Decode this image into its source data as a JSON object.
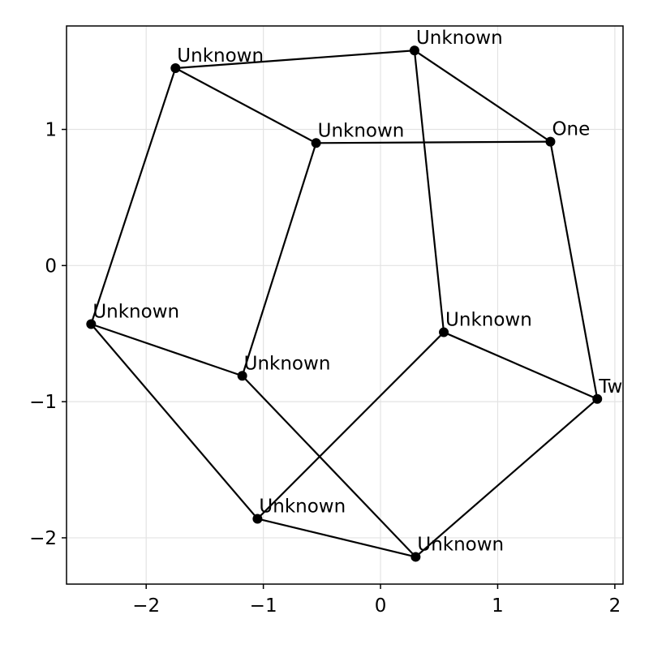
{
  "chart_data": {
    "type": "scatter",
    "title": "",
    "xlabel": "",
    "ylabel": "",
    "xlim": [
      -2.68,
      2.07
    ],
    "ylim": [
      -2.34,
      1.76
    ],
    "grid": true,
    "xticks": [
      {
        "value": -2,
        "label": "−2"
      },
      {
        "value": -1,
        "label": "−1"
      },
      {
        "value": 0,
        "label": "0"
      },
      {
        "value": 1,
        "label": "1"
      },
      {
        "value": 2,
        "label": "2"
      }
    ],
    "yticks": [
      {
        "value": 1,
        "label": "1"
      },
      {
        "value": 0,
        "label": "0"
      },
      {
        "value": -1,
        "label": "−1"
      },
      {
        "value": -2,
        "label": "−2"
      }
    ],
    "nodes": [
      {
        "id": "n1",
        "label": "One",
        "x": 1.45,
        "y": 0.91
      },
      {
        "id": "n2",
        "label": "Two",
        "x": 1.85,
        "y": -0.98
      },
      {
        "id": "n3",
        "label": "Unknown",
        "x": 0.3,
        "y": -2.14
      },
      {
        "id": "n4",
        "label": "Unknown",
        "x": -1.05,
        "y": -1.86
      },
      {
        "id": "n5",
        "label": "Unknown",
        "x": -2.47,
        "y": -0.43
      },
      {
        "id": "n6",
        "label": "Unknown",
        "x": -1.75,
        "y": 1.45
      },
      {
        "id": "n7",
        "label": "Unknown",
        "x": 0.29,
        "y": 1.58
      },
      {
        "id": "n8",
        "label": "Unknown",
        "x": -0.55,
        "y": 0.9
      },
      {
        "id": "n9",
        "label": "Unknown",
        "x": 0.54,
        "y": -0.49
      },
      {
        "id": "n10",
        "label": "Unknown",
        "x": -1.18,
        "y": -0.81
      }
    ],
    "edges": [
      [
        "n1",
        "n2"
      ],
      [
        "n2",
        "n3"
      ],
      [
        "n3",
        "n4"
      ],
      [
        "n4",
        "n5"
      ],
      [
        "n5",
        "n6"
      ],
      [
        "n6",
        "n7"
      ],
      [
        "n7",
        "n1"
      ],
      [
        "n1",
        "n8"
      ],
      [
        "n6",
        "n8"
      ],
      [
        "n8",
        "n10"
      ],
      [
        "n10",
        "n5"
      ],
      [
        "n10",
        "n3"
      ],
      [
        "n7",
        "n9"
      ],
      [
        "n9",
        "n2"
      ],
      [
        "n9",
        "n4"
      ]
    ]
  }
}
